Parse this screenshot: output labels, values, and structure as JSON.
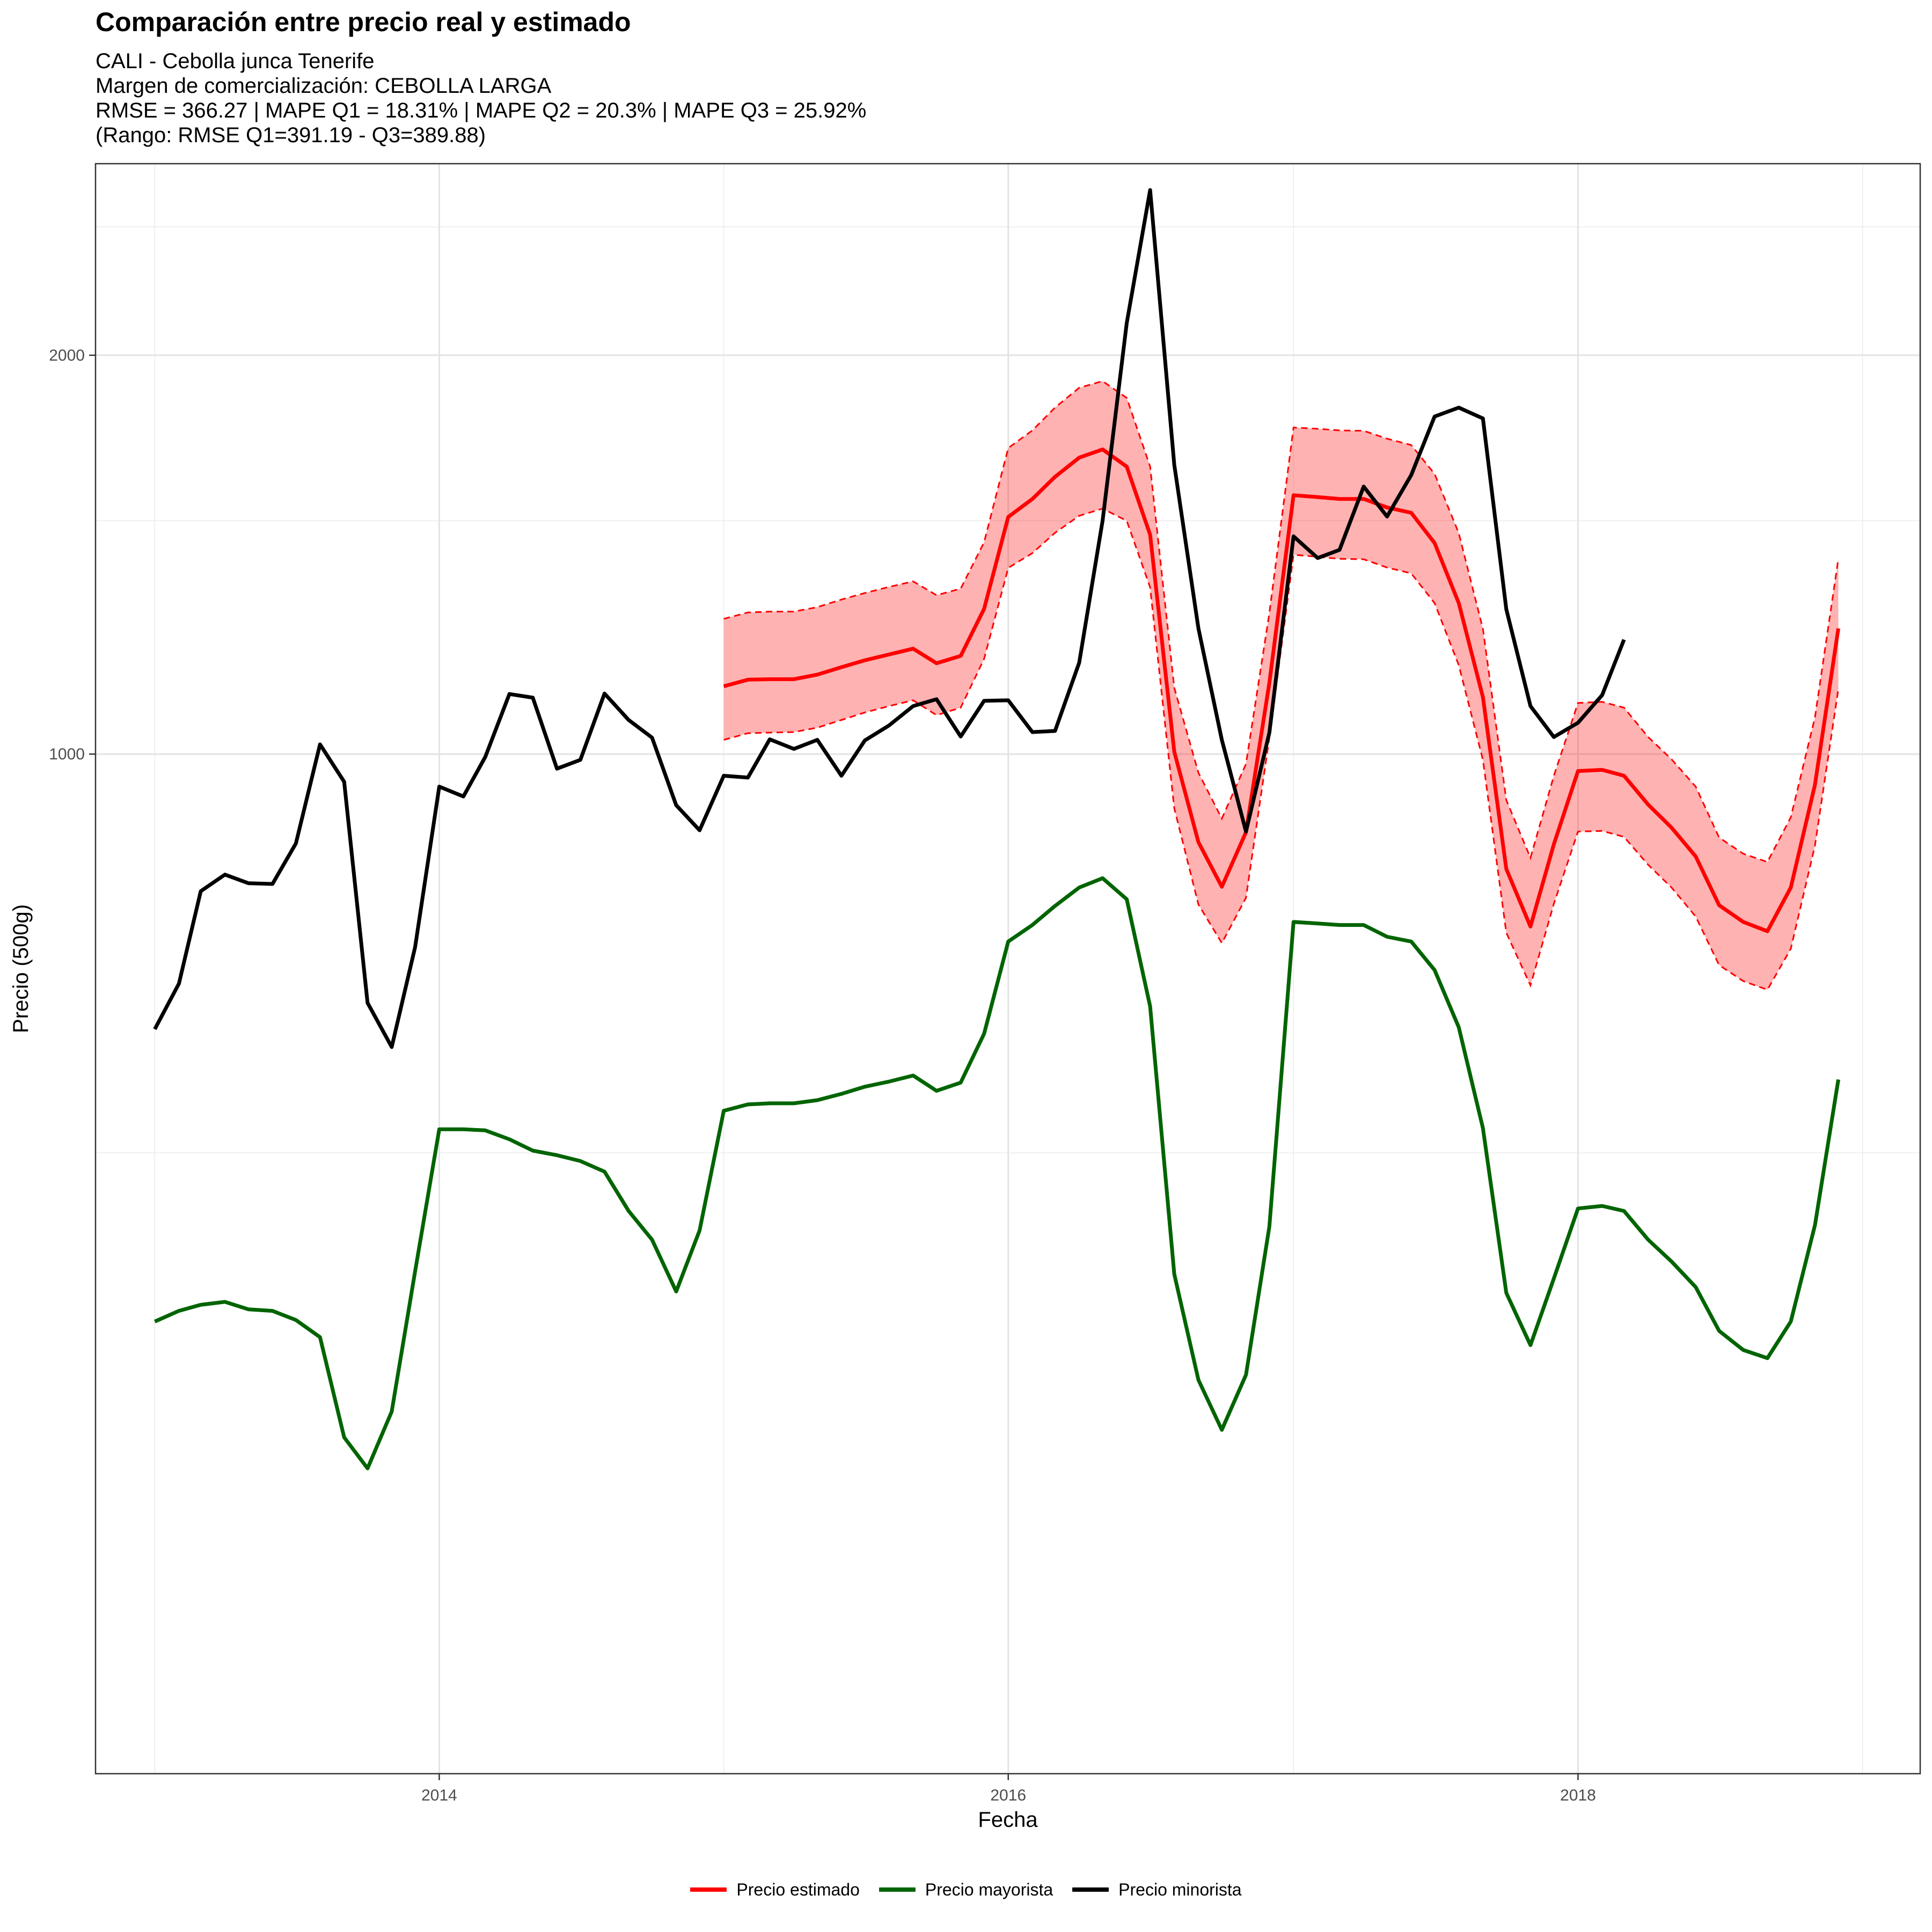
{
  "chart_data": {
    "type": "line",
    "title": "Comparación entre precio real y estimado",
    "subtitle_lines": [
      "CALI - Cebolla junca Tenerife",
      "Margen de comercialización: CEBOLLA LARGA",
      "RMSE = 366.27 | MAPE Q1 = 18.31% | MAPE Q2 = 20.3% | MAPE Q3 = 25.92%",
      "(Rango: RMSE Q1=391.19 - Q3=389.88)"
    ],
    "xlabel": "Fecha",
    "ylabel": "Precio (500g)",
    "x_ticks": [
      "2014",
      "2016",
      "2018"
    ],
    "y_ticks": [
      "1000",
      "2000"
    ],
    "xlim": [
      "2012-10-17",
      "2019-03-16"
    ],
    "ylim": [
      170,
      2790
    ],
    "grid": true,
    "legend_position": "bottom",
    "series": [
      {
        "name": "Precio estimado",
        "color": "#ff0000",
        "band_color": "#ff0000",
        "start": "2015-01",
        "values": [
          1125,
          1138,
          1139,
          1139,
          1148,
          1163,
          1177,
          1189,
          1201,
          1171,
          1186,
          1287,
          1510,
          1558,
          1619,
          1674,
          1698,
          1648,
          1464,
          1004,
          858,
          794,
          873,
          1132,
          1568,
          1563,
          1558,
          1558,
          1535,
          1521,
          1443,
          1300,
          1104,
          819,
          741,
          855,
          971,
          973,
          963,
          916,
          880,
          837,
          769,
          747,
          735,
          793,
          948,
          1244
        ],
        "lower": [
          1025,
          1037,
          1038,
          1039,
          1047,
          1061,
          1075,
          1087,
          1098,
          1070,
          1084,
          1180,
          1382,
          1418,
          1469,
          1513,
          1532,
          1500,
          1336,
          910,
          770,
          720,
          779,
          1029,
          1414,
          1409,
          1404,
          1403,
          1383,
          1369,
          1300,
          1167,
          990,
          733,
          669,
          771,
          874,
          875,
          866,
          825,
          793,
          754,
          693,
          674,
          664,
          713,
          853,
          1120
        ],
        "upper": [
          1265,
          1279,
          1281,
          1281,
          1291,
          1308,
          1323,
          1337,
          1350,
          1318,
          1333,
          1445,
          1702,
          1755,
          1826,
          1890,
          1912,
          1857,
          1648,
          1122,
          968,
          894,
          983,
          1278,
          1764,
          1760,
          1755,
          1754,
          1730,
          1711,
          1627,
          1468,
          1243,
          923,
          835,
          963,
          1093,
          1095,
          1084,
          1030,
          991,
          945,
          865,
          841,
          829,
          896,
          1066,
          1404
        ]
      },
      {
        "name": "Precio mayorista",
        "color": "#006400",
        "start": "2013-01",
        "values": [
          373,
          380,
          384,
          386,
          381,
          380,
          374,
          363,
          305,
          289,
          319,
          407,
          521,
          521,
          520,
          512,
          502,
          498,
          493,
          484,
          452,
          430,
          393,
          437,
          538,
          544,
          545,
          545,
          548,
          554,
          561,
          566,
          572,
          557,
          565,
          615,
          722,
          743,
          768,
          793,
          806,
          777,
          645,
          405,
          337,
          309,
          340,
          440,
          747,
          745,
          743,
          743,
          728,
          722,
          687,
          622,
          522,
          392,
          358,
          402,
          454,
          456,
          452,
          430,
          414,
          396,
          367,
          355,
          350,
          373,
          441,
          568
        ]
      },
      {
        "name": "Precio minorista",
        "color": "#000000",
        "start": "2013-01",
        "values": [
          620,
          671,
          788,
          811,
          799,
          798,
          856,
          1017,
          953,
          649,
          601,
          715,
          945,
          929,
          995,
          1110,
          1103,
          975,
          990,
          1111,
          1061,
          1029,
          915,
          876,
          963,
          960,
          1026,
          1009,
          1025,
          963,
          1024,
          1051,
          1087,
          1100,
          1031,
          1097,
          1098,
          1039,
          1041,
          1172,
          1500,
          2115,
          2665,
          1653,
          1244,
          1025,
          874,
          1038,
          1460,
          1406,
          1426,
          1592,
          1511,
          1624,
          1798,
          1826,
          1792,
          1286,
          1087,
          1030,
          1056,
          1108,
          1220
        ]
      }
    ]
  }
}
